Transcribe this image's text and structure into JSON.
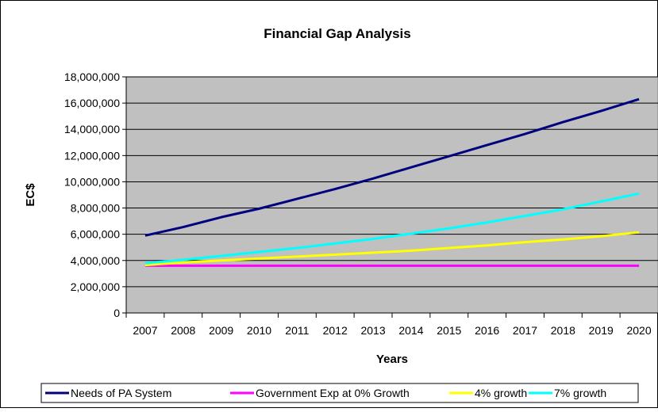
{
  "chart_data": {
    "type": "line",
    "title": "Financial Gap Analysis",
    "xlabel": "Years",
    "ylabel": "EC$",
    "categories": [
      "2007",
      "2008",
      "2009",
      "2010",
      "2011",
      "2012",
      "2013",
      "2014",
      "2015",
      "2016",
      "2017",
      "2018",
      "2019",
      "2020"
    ],
    "ylim": [
      0,
      18000000
    ],
    "yticks": [
      0,
      2000000,
      4000000,
      6000000,
      8000000,
      10000000,
      12000000,
      14000000,
      16000000,
      18000000
    ],
    "ytick_labels": [
      "0",
      "2,000,000",
      "4,000,000",
      "6,000,000",
      "8,000,000",
      "10,000,000",
      "12,000,000",
      "14,000,000",
      "16,000,000",
      "18,000,000"
    ],
    "grid": true,
    "plot_background": "#c0c0c0",
    "legend_position": "bottom",
    "series": [
      {
        "name": "Needs of PA System",
        "color": "#000080",
        "values": [
          5900000,
          6550000,
          7300000,
          7950000,
          8700000,
          9450000,
          10250000,
          11100000,
          11950000,
          12800000,
          13650000,
          14550000,
          15400000,
          16300000
        ]
      },
      {
        "name": "Government Exp at 0% Growth",
        "color": "#ff00ff",
        "values": [
          3600000,
          3600000,
          3600000,
          3600000,
          3600000,
          3600000,
          3600000,
          3600000,
          3600000,
          3600000,
          3600000,
          3600000,
          3600000,
          3600000
        ]
      },
      {
        "name": "4% growth",
        "color": "#ffff00",
        "values": [
          3650000,
          3850000,
          4000000,
          4150000,
          4300000,
          4450000,
          4600000,
          4750000,
          4950000,
          5150000,
          5400000,
          5600000,
          5850000,
          6150000
        ]
      },
      {
        "name": "7% growth",
        "color": "#00ffff",
        "values": [
          3800000,
          4050000,
          4350000,
          4650000,
          4950000,
          5300000,
          5650000,
          6050000,
          6450000,
          6900000,
          7400000,
          7900000,
          8500000,
          9100000
        ]
      }
    ]
  }
}
